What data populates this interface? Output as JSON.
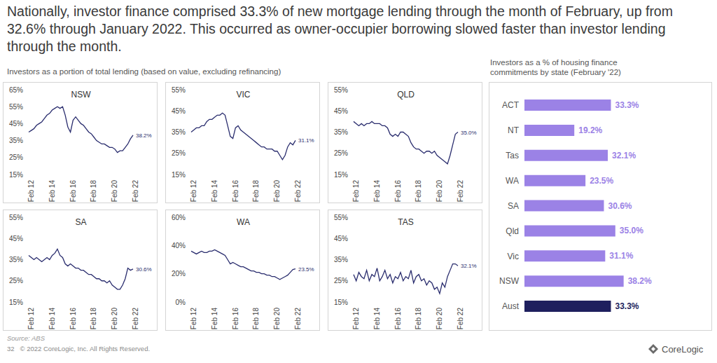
{
  "title": "Nationally, investor finance comprised 33.3% of new mortgage lending through the month of February, up from 32.6% through January 2022. This occurred as owner-occupier borrowing slowed faster than investor lending through the month.",
  "subtitle": "Investors as a portion of total lending (based on value, excluding refinancing)",
  "source": "Source: ABS",
  "footer": {
    "page": "32",
    "copyright": "© 2022 CoreLogic, Inc. All Rights Reserved.",
    "logo": "CoreLogic"
  },
  "chart_data": [
    {
      "type": "line",
      "title": "NSW",
      "color": "#2a2d6e",
      "data_labels": true,
      "categories": [
        "Feb 12",
        null,
        null,
        null,
        null,
        null,
        null,
        null,
        "Feb 14",
        null,
        null,
        null,
        null,
        null,
        null,
        null,
        "Feb 16",
        null,
        null,
        null,
        null,
        null,
        null,
        null,
        "Feb 18",
        null,
        null,
        null,
        null,
        null,
        null,
        null,
        "Feb 20",
        null,
        null,
        null,
        null,
        null,
        null,
        null,
        "Feb 22"
      ],
      "values": [
        40,
        41,
        42,
        44,
        45,
        46,
        48,
        50,
        51,
        53,
        54,
        55,
        54,
        55,
        50,
        43,
        40,
        47,
        49,
        47,
        45,
        44,
        42,
        40,
        39,
        37,
        35,
        34,
        33,
        33,
        32,
        31,
        31,
        30,
        28,
        29,
        29,
        31,
        33,
        36,
        38.2
      ],
      "value_labels": [
        null,
        null,
        null,
        null,
        null,
        null,
        null,
        null,
        null,
        null,
        null,
        null,
        null,
        null,
        null,
        null,
        null,
        null,
        null,
        null,
        null,
        null,
        null,
        null,
        null,
        null,
        null,
        null,
        null,
        null,
        null,
        null,
        null,
        null,
        null,
        null,
        null,
        null,
        null,
        null,
        "38.2%"
      ],
      "ylim": [
        15,
        65
      ],
      "yticks": [
        {
          "value": 15,
          "label": "15%"
        },
        {
          "value": 25,
          "label": "25%"
        },
        {
          "value": 35,
          "label": "35%"
        },
        {
          "value": 45,
          "label": "45%"
        },
        {
          "value": 55,
          "label": "55%"
        },
        {
          "value": 65,
          "label": "65%"
        }
      ]
    },
    {
      "type": "line",
      "title": "VIC",
      "color": "#2a2d6e",
      "data_labels": true,
      "categories": [
        "Feb 12",
        null,
        null,
        null,
        null,
        null,
        null,
        null,
        "Feb 14",
        null,
        null,
        null,
        null,
        null,
        null,
        null,
        "Feb 16",
        null,
        null,
        null,
        null,
        null,
        null,
        null,
        "Feb 18",
        null,
        null,
        null,
        null,
        null,
        null,
        null,
        "Feb 20",
        null,
        null,
        null,
        null,
        null,
        null,
        null,
        "Feb 22"
      ],
      "values": [
        35,
        36,
        37,
        37,
        38,
        38,
        40,
        41,
        41,
        42,
        43,
        43,
        44,
        43,
        38,
        33,
        32,
        37,
        38,
        36,
        35,
        34,
        33,
        32,
        31,
        30,
        29,
        28,
        28,
        27,
        27,
        27,
        26,
        26,
        24,
        22,
        24,
        28,
        30,
        29,
        31.1
      ],
      "value_labels": [
        null,
        null,
        null,
        null,
        null,
        null,
        null,
        null,
        null,
        null,
        null,
        null,
        null,
        null,
        null,
        null,
        null,
        null,
        null,
        null,
        null,
        null,
        null,
        null,
        null,
        null,
        null,
        null,
        null,
        null,
        null,
        null,
        null,
        null,
        null,
        null,
        null,
        null,
        null,
        null,
        "31.1%"
      ],
      "ylim": [
        15,
        55
      ],
      "yticks": [
        {
          "value": 15,
          "label": "15%"
        },
        {
          "value": 25,
          "label": "25%"
        },
        {
          "value": 35,
          "label": "35%"
        },
        {
          "value": 45,
          "label": "45%"
        },
        {
          "value": 55,
          "label": "55%"
        }
      ]
    },
    {
      "type": "line",
      "title": "QLD",
      "color": "#2a2d6e",
      "data_labels": true,
      "categories": [
        "Feb 12",
        null,
        null,
        null,
        null,
        null,
        null,
        null,
        "Feb 14",
        null,
        null,
        null,
        null,
        null,
        null,
        null,
        "Feb 16",
        null,
        null,
        null,
        null,
        null,
        null,
        null,
        "Feb 18",
        null,
        null,
        null,
        null,
        null,
        null,
        null,
        "Feb 20",
        null,
        null,
        null,
        null,
        null,
        null,
        null,
        "Feb 22"
      ],
      "values": [
        40,
        39,
        38,
        39,
        38,
        39,
        39,
        40,
        39,
        39,
        39,
        38,
        38,
        37,
        34,
        33,
        34,
        33,
        35,
        35,
        34,
        33,
        30,
        28,
        27,
        27,
        26,
        25,
        26,
        26,
        25,
        26,
        24,
        23,
        22,
        21,
        20,
        24,
        29,
        34,
        35.0
      ],
      "value_labels": [
        null,
        null,
        null,
        null,
        null,
        null,
        null,
        null,
        null,
        null,
        null,
        null,
        null,
        null,
        null,
        null,
        null,
        null,
        null,
        null,
        null,
        null,
        null,
        null,
        null,
        null,
        null,
        null,
        null,
        null,
        null,
        null,
        null,
        null,
        null,
        null,
        null,
        null,
        null,
        null,
        "35.0%"
      ],
      "ylim": [
        15,
        55
      ],
      "yticks": [
        {
          "value": 15,
          "label": "15%"
        },
        {
          "value": 25,
          "label": "25%"
        },
        {
          "value": 35,
          "label": "35%"
        },
        {
          "value": 45,
          "label": "45%"
        },
        {
          "value": 55,
          "label": "55%"
        }
      ]
    },
    {
      "type": "line",
      "title": "SA",
      "color": "#2a2d6e",
      "data_labels": true,
      "categories": [
        "Feb 12",
        null,
        null,
        null,
        null,
        null,
        null,
        null,
        "Feb 14",
        null,
        null,
        null,
        null,
        null,
        null,
        null,
        "Feb 16",
        null,
        null,
        null,
        null,
        null,
        null,
        null,
        "Feb 18",
        null,
        null,
        null,
        null,
        null,
        null,
        null,
        "Feb 20",
        null,
        null,
        null,
        null,
        null,
        null,
        null,
        "Feb 22"
      ],
      "values": [
        37,
        36,
        35,
        36,
        35,
        34,
        35,
        36,
        35,
        37,
        38,
        40,
        37,
        36,
        33,
        32,
        33,
        32,
        31,
        31,
        30,
        30,
        29,
        28,
        28,
        27,
        26,
        26,
        25,
        25,
        24,
        25,
        23,
        22,
        21,
        21,
        23,
        26,
        31,
        30,
        30.6
      ],
      "value_labels": [
        null,
        null,
        null,
        null,
        null,
        null,
        null,
        null,
        null,
        null,
        null,
        null,
        null,
        null,
        null,
        null,
        null,
        null,
        null,
        null,
        null,
        null,
        null,
        null,
        null,
        null,
        null,
        null,
        null,
        null,
        null,
        null,
        null,
        null,
        null,
        null,
        null,
        null,
        null,
        null,
        "30.6%"
      ],
      "ylim": [
        15,
        55
      ],
      "yticks": [
        {
          "value": 15,
          "label": "15%"
        },
        {
          "value": 25,
          "label": "25%"
        },
        {
          "value": 35,
          "label": "35%"
        },
        {
          "value": 45,
          "label": "45%"
        },
        {
          "value": 55,
          "label": "55%"
        }
      ]
    },
    {
      "type": "line",
      "title": "WA",
      "color": "#2a2d6e",
      "data_labels": true,
      "categories": [
        "Feb 12",
        null,
        null,
        null,
        null,
        null,
        null,
        null,
        "Feb 14",
        null,
        null,
        null,
        null,
        null,
        null,
        null,
        "Feb 16",
        null,
        null,
        null,
        null,
        null,
        null,
        null,
        "Feb 18",
        null,
        null,
        null,
        null,
        null,
        null,
        null,
        "Feb 20",
        null,
        null,
        null,
        null,
        null,
        null,
        null,
        "Feb 22"
      ],
      "values": [
        36,
        35,
        34,
        35,
        36,
        35,
        35,
        36,
        36,
        37,
        36,
        35,
        34,
        33,
        30,
        27,
        28,
        27,
        26,
        25,
        25,
        24,
        23,
        22,
        22,
        21,
        21,
        20,
        20,
        19,
        19,
        18,
        18,
        17,
        16,
        17,
        18,
        19,
        21,
        23,
        23.5
      ],
      "value_labels": [
        null,
        null,
        null,
        null,
        null,
        null,
        null,
        null,
        null,
        null,
        null,
        null,
        null,
        null,
        null,
        null,
        null,
        null,
        null,
        null,
        null,
        null,
        null,
        null,
        null,
        null,
        null,
        null,
        null,
        null,
        null,
        null,
        null,
        null,
        null,
        null,
        null,
        null,
        null,
        null,
        "23.5%"
      ],
      "ylim": [
        0,
        60
      ],
      "yticks": [
        {
          "value": 0,
          "label": "0%"
        },
        {
          "value": 20,
          "label": "20%"
        },
        {
          "value": 40,
          "label": "40%"
        },
        {
          "value": 60,
          "label": "60%"
        }
      ]
    },
    {
      "type": "line",
      "title": "TAS",
      "color": "#2a2d6e",
      "data_labels": true,
      "categories": [
        "Feb 12",
        null,
        null,
        null,
        null,
        null,
        null,
        null,
        "Feb 14",
        null,
        null,
        null,
        null,
        null,
        null,
        null,
        "Feb 16",
        null,
        null,
        null,
        null,
        null,
        null,
        null,
        "Feb 18",
        null,
        null,
        null,
        null,
        null,
        null,
        null,
        "Feb 20",
        null,
        null,
        null,
        null,
        null,
        null,
        null,
        "Feb 22"
      ],
      "values": [
        28,
        25,
        29,
        27,
        26,
        30,
        25,
        28,
        27,
        31,
        25,
        27,
        30,
        26,
        28,
        24,
        27,
        26,
        29,
        25,
        27,
        26,
        30,
        24,
        27,
        28,
        25,
        26,
        23,
        25,
        24,
        21,
        22,
        19,
        24,
        22,
        27,
        30,
        33,
        33,
        32.1
      ],
      "value_labels": [
        null,
        null,
        null,
        null,
        null,
        null,
        null,
        null,
        null,
        null,
        null,
        null,
        null,
        null,
        null,
        null,
        null,
        null,
        null,
        null,
        null,
        null,
        null,
        null,
        null,
        null,
        null,
        null,
        null,
        null,
        null,
        null,
        null,
        null,
        null,
        null,
        null,
        null,
        null,
        null,
        "32.1%"
      ],
      "ylim": [
        15,
        55
      ],
      "yticks": [
        {
          "value": 15,
          "label": "15%"
        },
        {
          "value": 25,
          "label": "25%"
        },
        {
          "value": 35,
          "label": "35%"
        },
        {
          "value": 45,
          "label": "45%"
        },
        {
          "value": 55,
          "label": "55%"
        }
      ]
    },
    {
      "type": "bar",
      "orientation": "horizontal",
      "title": "Investors as a % of housing finance commitments by state (February '22)",
      "categories": [
        "ACT",
        "NT",
        "Tas",
        "WA",
        "SA",
        "Qld",
        "Vic",
        "NSW",
        "Aust"
      ],
      "values": [
        33.3,
        19.2,
        32.1,
        23.5,
        30.6,
        35.0,
        31.1,
        38.2,
        33.3
      ],
      "value_labels": [
        "33.3%",
        "19.2%",
        "32.1%",
        "23.5%",
        "30.6%",
        "35.0%",
        "31.1%",
        "38.2%",
        "33.3%"
      ],
      "colors": [
        "#9b82e6",
        "#9b82e6",
        "#9b82e6",
        "#9b82e6",
        "#9b82e6",
        "#9b82e6",
        "#9b82e6",
        "#9b82e6",
        "#1e1f5e"
      ],
      "data_labels": true,
      "tick_labels": "y"
    }
  ]
}
